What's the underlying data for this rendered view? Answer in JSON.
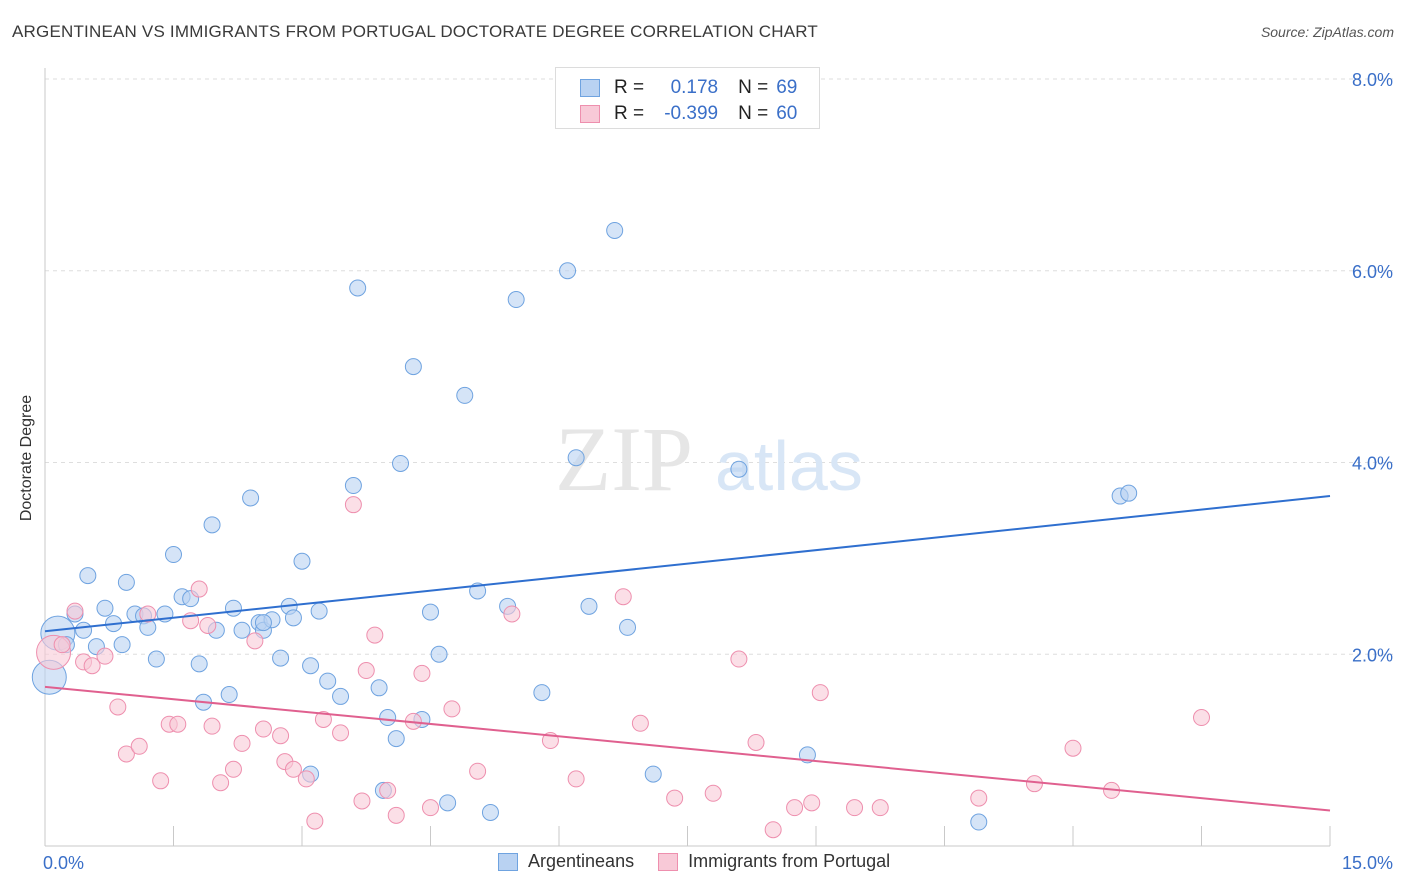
{
  "header": {
    "title": "ARGENTINEAN VS IMMIGRANTS FROM PORTUGAL DOCTORATE DEGREE CORRELATION CHART",
    "source": "Source: ZipAtlas.com"
  },
  "watermark": {
    "zip": "ZIP",
    "atlas": "atlas"
  },
  "legend_stats": {
    "r_label": "R =",
    "n_label": "N =",
    "series": [
      {
        "r": "0.178",
        "n": "69"
      },
      {
        "r": "-0.399",
        "n": "60"
      }
    ]
  },
  "chart_data": {
    "type": "scatter",
    "title": "ARGENTINEAN VS IMMIGRANTS FROM PORTUGAL DOCTORATE DEGREE CORRELATION CHART",
    "xlabel": "",
    "ylabel": "Doctorate Degree",
    "xlim": [
      0,
      15
    ],
    "ylim": [
      0,
      8
    ],
    "x_tick_labels": [
      "0.0%",
      "15.0%"
    ],
    "y_ticks": [
      2,
      4,
      6,
      8
    ],
    "y_tick_labels": [
      "2.0%",
      "4.0%",
      "6.0%",
      "8.0%"
    ],
    "grid": true,
    "legend_position": "bottom",
    "series": [
      {
        "name": "Argentineans",
        "color": "#6fa3e0",
        "fill": "#b9d2f2",
        "trend": {
          "x": [
            0,
            15
          ],
          "y": [
            2.24,
            3.65
          ]
        },
        "points": [
          {
            "x": 0.05,
            "y": 1.76,
            "big": true
          },
          {
            "x": 0.15,
            "y": 2.22,
            "big": true
          },
          {
            "x": 0.25,
            "y": 2.1
          },
          {
            "x": 0.35,
            "y": 2.42
          },
          {
            "x": 0.45,
            "y": 2.25
          },
          {
            "x": 0.5,
            "y": 2.82
          },
          {
            "x": 0.6,
            "y": 2.08
          },
          {
            "x": 0.7,
            "y": 2.48
          },
          {
            "x": 0.8,
            "y": 2.32
          },
          {
            "x": 0.9,
            "y": 2.1
          },
          {
            "x": 0.95,
            "y": 2.75
          },
          {
            "x": 1.05,
            "y": 2.42
          },
          {
            "x": 1.15,
            "y": 2.4
          },
          {
            "x": 1.2,
            "y": 2.28
          },
          {
            "x": 1.3,
            "y": 1.95
          },
          {
            "x": 1.4,
            "y": 2.42
          },
          {
            "x": 1.5,
            "y": 3.04
          },
          {
            "x": 1.6,
            "y": 2.6
          },
          {
            "x": 1.7,
            "y": 2.58
          },
          {
            "x": 1.8,
            "y": 1.9
          },
          {
            "x": 1.85,
            "y": 1.5
          },
          {
            "x": 1.95,
            "y": 3.35
          },
          {
            "x": 2.0,
            "y": 2.25
          },
          {
            "x": 2.15,
            "y": 1.58
          },
          {
            "x": 2.2,
            "y": 2.48
          },
          {
            "x": 2.3,
            "y": 2.25
          },
          {
            "x": 2.4,
            "y": 3.63
          },
          {
            "x": 2.5,
            "y": 2.33
          },
          {
            "x": 2.55,
            "y": 2.25
          },
          {
            "x": 2.65,
            "y": 2.36
          },
          {
            "x": 2.75,
            "y": 1.96
          },
          {
            "x": 2.85,
            "y": 2.5
          },
          {
            "x": 2.9,
            "y": 2.38
          },
          {
            "x": 3.0,
            "y": 2.97
          },
          {
            "x": 3.1,
            "y": 1.88
          },
          {
            "x": 3.2,
            "y": 2.45
          },
          {
            "x": 3.3,
            "y": 1.72
          },
          {
            "x": 3.45,
            "y": 1.56
          },
          {
            "x": 3.6,
            "y": 3.76
          },
          {
            "x": 3.65,
            "y": 5.82
          },
          {
            "x": 3.9,
            "y": 1.65
          },
          {
            "x": 4.0,
            "y": 1.34
          },
          {
            "x": 4.1,
            "y": 1.12
          },
          {
            "x": 4.15,
            "y": 3.99
          },
          {
            "x": 4.3,
            "y": 5.0
          },
          {
            "x": 4.4,
            "y": 1.32
          },
          {
            "x": 4.5,
            "y": 2.44
          },
          {
            "x": 4.6,
            "y": 2.0
          },
          {
            "x": 4.7,
            "y": 0.45
          },
          {
            "x": 4.9,
            "y": 4.7
          },
          {
            "x": 5.05,
            "y": 2.66
          },
          {
            "x": 5.2,
            "y": 0.35
          },
          {
            "x": 5.4,
            "y": 2.5
          },
          {
            "x": 5.5,
            "y": 5.7
          },
          {
            "x": 5.8,
            "y": 1.6
          },
          {
            "x": 6.1,
            "y": 6.0
          },
          {
            "x": 6.2,
            "y": 4.05
          },
          {
            "x": 6.35,
            "y": 2.5
          },
          {
            "x": 6.65,
            "y": 6.42
          },
          {
            "x": 6.8,
            "y": 2.28
          },
          {
            "x": 7.1,
            "y": 0.75
          },
          {
            "x": 8.1,
            "y": 3.93
          },
          {
            "x": 8.9,
            "y": 0.95
          },
          {
            "x": 10.9,
            "y": 0.25
          },
          {
            "x": 12.55,
            "y": 3.65
          },
          {
            "x": 12.65,
            "y": 3.68
          },
          {
            "x": 3.1,
            "y": 0.75
          },
          {
            "x": 3.95,
            "y": 0.58
          },
          {
            "x": 2.55,
            "y": 2.33
          }
        ]
      },
      {
        "name": "Immigrants from Portugal",
        "color": "#ee8fae",
        "fill": "#f8c9d7",
        "trend": {
          "x": [
            0,
            15
          ],
          "y": [
            1.66,
            0.37
          ]
        },
        "points": [
          {
            "x": 0.1,
            "y": 2.02,
            "big": true
          },
          {
            "x": 0.2,
            "y": 2.1
          },
          {
            "x": 0.35,
            "y": 2.45
          },
          {
            "x": 0.45,
            "y": 1.92
          },
          {
            "x": 0.55,
            "y": 1.88
          },
          {
            "x": 0.7,
            "y": 1.98
          },
          {
            "x": 0.85,
            "y": 1.45
          },
          {
            "x": 0.95,
            "y": 0.96
          },
          {
            "x": 1.1,
            "y": 1.04
          },
          {
            "x": 1.2,
            "y": 2.42
          },
          {
            "x": 1.35,
            "y": 0.68
          },
          {
            "x": 1.45,
            "y": 1.27
          },
          {
            "x": 1.55,
            "y": 1.27
          },
          {
            "x": 1.7,
            "y": 2.35
          },
          {
            "x": 1.8,
            "y": 2.68
          },
          {
            "x": 1.9,
            "y": 2.3
          },
          {
            "x": 1.95,
            "y": 1.25
          },
          {
            "x": 2.05,
            "y": 0.66
          },
          {
            "x": 2.2,
            "y": 0.8
          },
          {
            "x": 2.3,
            "y": 1.07
          },
          {
            "x": 2.45,
            "y": 2.14
          },
          {
            "x": 2.55,
            "y": 1.22
          },
          {
            "x": 2.75,
            "y": 1.15
          },
          {
            "x": 2.8,
            "y": 0.88
          },
          {
            "x": 2.9,
            "y": 0.8
          },
          {
            "x": 3.05,
            "y": 0.7
          },
          {
            "x": 3.15,
            "y": 0.26
          },
          {
            "x": 3.25,
            "y": 1.32
          },
          {
            "x": 3.45,
            "y": 1.18
          },
          {
            "x": 3.6,
            "y": 3.56
          },
          {
            "x": 3.7,
            "y": 0.47
          },
          {
            "x": 3.75,
            "y": 1.83
          },
          {
            "x": 3.85,
            "y": 2.2
          },
          {
            "x": 4.0,
            "y": 0.58
          },
          {
            "x": 4.1,
            "y": 0.32
          },
          {
            "x": 4.3,
            "y": 1.3
          },
          {
            "x": 4.4,
            "y": 1.8
          },
          {
            "x": 4.5,
            "y": 0.4
          },
          {
            "x": 4.75,
            "y": 1.43
          },
          {
            "x": 5.05,
            "y": 0.78
          },
          {
            "x": 5.45,
            "y": 2.42
          },
          {
            "x": 5.9,
            "y": 1.1
          },
          {
            "x": 6.2,
            "y": 0.7
          },
          {
            "x": 6.75,
            "y": 2.6
          },
          {
            "x": 6.95,
            "y": 1.28
          },
          {
            "x": 7.35,
            "y": 0.5
          },
          {
            "x": 7.8,
            "y": 0.55
          },
          {
            "x": 8.1,
            "y": 1.95
          },
          {
            "x": 8.3,
            "y": 1.08
          },
          {
            "x": 8.5,
            "y": 0.17
          },
          {
            "x": 8.75,
            "y": 0.4
          },
          {
            "x": 8.95,
            "y": 0.45
          },
          {
            "x": 9.05,
            "y": 1.6
          },
          {
            "x": 9.45,
            "y": 0.4
          },
          {
            "x": 9.75,
            "y": 0.4
          },
          {
            "x": 10.9,
            "y": 0.5
          },
          {
            "x": 11.55,
            "y": 0.65
          },
          {
            "x": 12.0,
            "y": 1.02
          },
          {
            "x": 12.45,
            "y": 0.58
          },
          {
            "x": 13.5,
            "y": 1.34
          }
        ]
      }
    ]
  }
}
